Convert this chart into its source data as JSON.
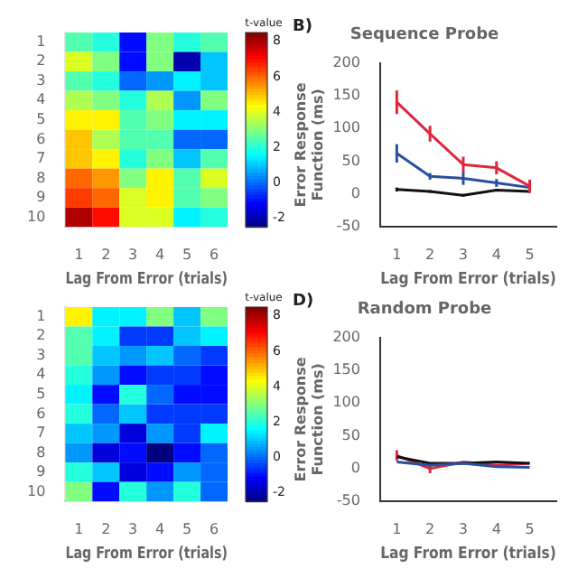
{
  "chart_data": [
    {
      "type": "heatmap",
      "xlabel": "Lag From Error (trials)",
      "clabel": "t-value",
      "categories": [
        "1",
        "2",
        "3",
        "4",
        "5",
        "6"
      ],
      "y_categories": [
        "1",
        "2",
        "3",
        "4",
        "5",
        "6",
        "7",
        "8",
        "9",
        "10"
      ],
      "cells": [
        [
          2.5,
          2,
          -1,
          3,
          2,
          2.5
        ],
        [
          4,
          3,
          -1,
          3,
          -2,
          1
        ],
        [
          2.5,
          2,
          0,
          0.5,
          1.5,
          1
        ],
        [
          3.5,
          3,
          2,
          3.5,
          0.5,
          3
        ],
        [
          4.5,
          4.5,
          2.5,
          3,
          1.5,
          1.5
        ],
        [
          5,
          3.5,
          2.5,
          2.5,
          0,
          0
        ],
        [
          5,
          4.5,
          2,
          3,
          1,
          2.5
        ],
        [
          6,
          5.5,
          3,
          4.5,
          2.5,
          4
        ],
        [
          6.5,
          6,
          4,
          4.5,
          2.5,
          3
        ],
        [
          8,
          7,
          4,
          4,
          1.5,
          2
        ]
      ],
      "clim": [
        -2.5,
        8.5
      ],
      "cticks": [
        -2,
        0,
        2,
        4,
        6,
        8
      ]
    },
    {
      "type": "line",
      "title": "Sequence Probe",
      "xlabel": "Lag From Error (trials)",
      "ylabel": "Error Response Function (ms)",
      "annotations": [
        "B)"
      ],
      "x": [
        1,
        2,
        3,
        4,
        5
      ],
      "xlim": [
        0.5,
        5.8
      ],
      "xticks": [
        1,
        2,
        3,
        4,
        5
      ],
      "ylim": [
        -50,
        200
      ],
      "yticks": [
        -50,
        0,
        50,
        100,
        150,
        200
      ],
      "grid": false,
      "marker": "none",
      "legend": false,
      "series": [
        {
          "color": "#e0283c",
          "values": [
            140,
            92,
            45,
            40,
            12
          ],
          "errors": [
            18,
            12,
            12,
            10,
            10
          ]
        },
        {
          "color": "#2a4fa0",
          "values": [
            62,
            27,
            24,
            17,
            10
          ],
          "errors": [
            14,
            5,
            10,
            6,
            4
          ]
        },
        {
          "color": "#111111",
          "values": [
            7,
            4,
            -2,
            6,
            4
          ],
          "errors": [
            3,
            2,
            2,
            2,
            2
          ]
        }
      ]
    },
    {
      "type": "heatmap",
      "xlabel": "Lag From Error (trials)",
      "clabel": "t-value",
      "categories": [
        "1",
        "2",
        "3",
        "4",
        "5",
        "6"
      ],
      "y_categories": [
        "1",
        "2",
        "3",
        "4",
        "5",
        "6",
        "7",
        "8",
        "9",
        "10"
      ],
      "cells": [
        [
          4.5,
          1.5,
          1.5,
          3,
          1,
          3
        ],
        [
          2.5,
          1.5,
          -0.5,
          -0.5,
          1,
          1.5
        ],
        [
          2.5,
          1,
          0.5,
          1,
          0,
          -0.5
        ],
        [
          2,
          0.5,
          -1,
          -0.5,
          -0.5,
          -1
        ],
        [
          1.5,
          -1,
          2,
          0,
          -1,
          -1
        ],
        [
          2,
          0,
          1,
          -0.5,
          -0.5,
          -0.5
        ],
        [
          1,
          0.5,
          -1.5,
          0.5,
          -0.5,
          1.5
        ],
        [
          0.5,
          -1.5,
          -1,
          -2.5,
          -1,
          0
        ],
        [
          2,
          1,
          -1.5,
          -1,
          0.5,
          0
        ],
        [
          3,
          -1,
          2,
          0.5,
          2,
          0
        ]
      ],
      "clim": [
        -2.5,
        8.5
      ],
      "cticks": [
        -2,
        0,
        2,
        4,
        6,
        8
      ]
    },
    {
      "type": "line",
      "title": "Random Probe",
      "xlabel": "Lag From Error (trials)",
      "ylabel": "Error Response Function (ms)",
      "annotations": [
        "D)"
      ],
      "x": [
        1,
        2,
        3,
        4,
        5
      ],
      "xlim": [
        0.5,
        5.8
      ],
      "xticks": [
        1,
        2,
        3,
        4,
        5
      ],
      "ylim": [
        -50,
        200
      ],
      "yticks": [
        -50,
        0,
        50,
        100,
        150,
        200
      ],
      "grid": false,
      "marker": "none",
      "legend": false,
      "series": [
        {
          "color": "#2a4fa0",
          "values": [
            10,
            5,
            8,
            3,
            2
          ]
        },
        {
          "color": "#111111",
          "values": [
            18,
            8,
            8,
            10,
            8
          ]
        },
        {
          "color": "#e0283c",
          "values": [
            20,
            0,
            10,
            5,
            8
          ],
          "errors": [
            8,
            7,
            null,
            null,
            null
          ]
        }
      ]
    }
  ]
}
